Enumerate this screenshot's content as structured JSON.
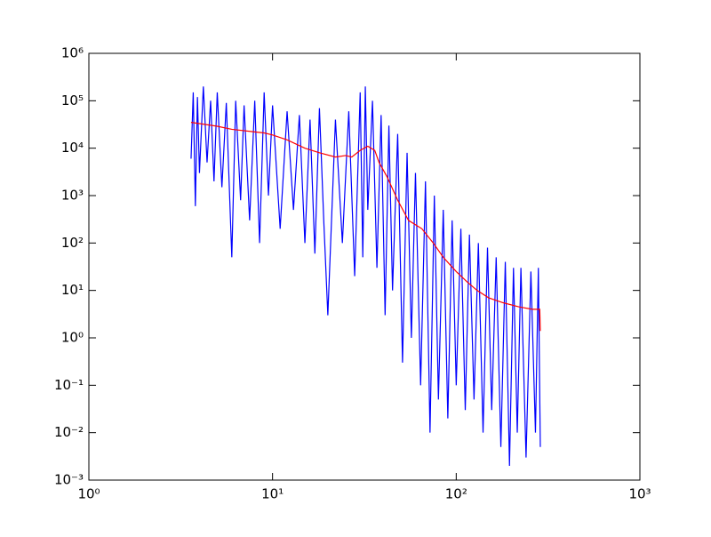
{
  "chart_data": {
    "type": "line",
    "xscale": "log",
    "yscale": "log",
    "xlim": [
      1,
      1000
    ],
    "ylim": [
      0.001,
      1000000
    ],
    "xticks": [
      {
        "value": 1,
        "label": "10⁰"
      },
      {
        "value": 10,
        "label": "10¹"
      },
      {
        "value": 100,
        "label": "10²"
      },
      {
        "value": 1000,
        "label": "10³"
      }
    ],
    "yticks": [
      {
        "value": 0.001,
        "label": "10⁻³"
      },
      {
        "value": 0.01,
        "label": "10⁻²"
      },
      {
        "value": 0.1,
        "label": "10⁻¹"
      },
      {
        "value": 1,
        "label": "10⁰"
      },
      {
        "value": 10,
        "label": "10¹"
      },
      {
        "value": 100,
        "label": "10²"
      },
      {
        "value": 1000,
        "label": "10³"
      },
      {
        "value": 10000,
        "label": "10⁴"
      },
      {
        "value": 100000,
        "label": "10⁵"
      },
      {
        "value": 1000000,
        "label": "10⁶"
      }
    ],
    "series": [
      {
        "color": "#0000ff",
        "x": [
          3.6,
          3.7,
          3.8,
          3.9,
          4.0,
          4.2,
          4.4,
          4.6,
          4.8,
          5.0,
          5.3,
          5.6,
          6.0,
          6.3,
          6.7,
          7.0,
          7.5,
          8,
          8.5,
          9,
          9.5,
          10,
          11,
          12,
          13,
          14,
          15,
          16,
          17,
          18,
          19,
          20,
          22,
          24,
          26,
          28,
          30,
          31,
          32,
          33,
          35,
          37,
          39,
          41,
          43,
          45,
          48,
          51,
          54,
          57,
          60,
          64,
          68,
          72,
          76,
          80,
          85,
          90,
          95,
          100,
          106,
          112,
          118,
          125,
          132,
          140,
          148,
          156,
          165,
          175,
          185,
          195,
          205,
          215,
          225,
          240,
          255,
          270,
          280,
          287
        ],
        "values": [
          6000,
          150000,
          600,
          120000,
          3000,
          200000,
          5000,
          100000,
          2000,
          150000,
          1500,
          90000,
          50,
          100000,
          800,
          80000,
          300,
          100000,
          100,
          150000,
          1000,
          80000,
          200,
          60000,
          500,
          50000,
          100,
          40000,
          60,
          70000,
          300,
          3,
          40000,
          100,
          60000,
          20,
          150000,
          50,
          200000,
          500,
          100000,
          30,
          50000,
          3,
          30000,
          10,
          20000,
          0.3,
          8000,
          1,
          3000,
          0.1,
          2000,
          0.01,
          1000,
          0.05,
          500,
          0.02,
          300,
          0.1,
          200,
          0.03,
          150,
          0.05,
          100,
          0.01,
          80,
          0.03,
          50,
          0.005,
          40,
          0.002,
          30,
          0.01,
          30,
          0.003,
          25,
          0.01,
          30,
          0.005
        ]
      },
      {
        "color": "#ff0000",
        "x": [
          3.6,
          4,
          5,
          6,
          8,
          9,
          10,
          12,
          15,
          18,
          22,
          25,
          27,
          30,
          33,
          36,
          38,
          42,
          48,
          55,
          65,
          75,
          85,
          100,
          115,
          130,
          150,
          180,
          220,
          260,
          285,
          287
        ],
        "values": [
          35000,
          33000,
          29000,
          25000,
          22000,
          21000,
          19000,
          15000,
          10000,
          8000,
          6500,
          7000,
          6500,
          9000,
          11000,
          9000,
          5000,
          2500,
          800,
          300,
          200,
          100,
          50,
          25,
          15,
          10,
          7,
          5.5,
          4.5,
          4,
          4,
          1.4
        ]
      }
    ]
  }
}
